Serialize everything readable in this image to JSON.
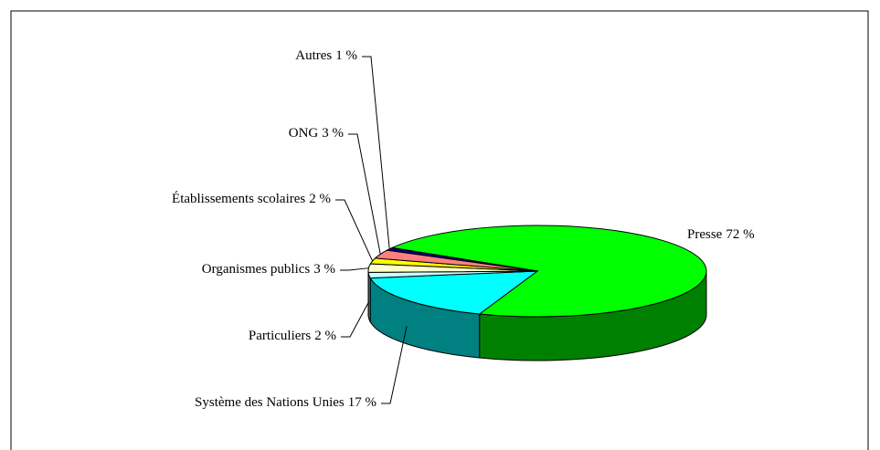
{
  "chart_data": {
    "type": "pie3d",
    "categories": [
      "Presse",
      "Système des Nations Unies",
      "Particuliers",
      "Organismes publics",
      "Établissements scolaires",
      "ONG",
      "Autres"
    ],
    "values": [
      72,
      17,
      2,
      3,
      2,
      3,
      1
    ],
    "value_labels": [
      "72 %",
      "17 %",
      "2 %",
      "3 %",
      "2 %",
      "3 %",
      "1 %"
    ],
    "colors": [
      "#00ff00",
      "#00ffff",
      "#ccffff",
      "#ffffcc",
      "#ffff00",
      "#ff8080",
      "#000080"
    ]
  }
}
